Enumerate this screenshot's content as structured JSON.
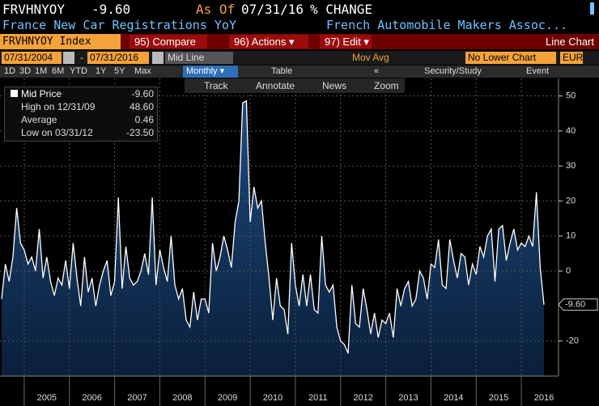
{
  "header": {
    "ticker": "FRVHNYOY",
    "price": "-9.60",
    "as_of": "As Of",
    "date": "07/31/16",
    "unit": "% CHANGE",
    "name": "France New Car Registrations YoY",
    "source": "French Automobile Makers Assoc..."
  },
  "toolbar": {
    "security": "FRVHNYOY Index",
    "compare": "95) Compare",
    "actions": "96) Actions ▾",
    "edit": "97) Edit ▾",
    "chart_type": "Line Chart",
    "start_date": "07/31/2004",
    "dash": "-",
    "end_date": "07/31/2016",
    "field": "Mid Line",
    "mov_avg": "Mov Avg",
    "lower": "No Lower Chart",
    "currency": "EUR",
    "ranges": [
      "1D",
      "3D",
      "1M",
      "6M",
      "YTD",
      "1Y",
      "5Y",
      "Max"
    ],
    "period": "Monthly ▾",
    "table": "Table",
    "back": "«",
    "study": "Security/Study",
    "event": "Event",
    "tools": [
      "Track",
      "Annotate",
      "News",
      "Zoom"
    ]
  },
  "legend": [
    {
      "label": "Mid Price",
      "value": "-9.60"
    },
    {
      "label": "High on 12/31/09",
      "value": "48.60"
    },
    {
      "label": "Average",
      "value": "0.46"
    },
    {
      "label": "Low on 03/31/12",
      "value": "-23.50"
    }
  ],
  "chart_data": {
    "type": "line",
    "xlim": [
      2004.5,
      2016.5
    ],
    "xticks": [
      2005,
      2006,
      2007,
      2008,
      2009,
      2010,
      2011,
      2012,
      2013,
      2014,
      2015,
      2016
    ],
    "ylim": [
      -30,
      55
    ],
    "yticks": [
      50,
      40,
      30,
      20,
      10,
      0,
      -20
    ],
    "grid": true,
    "last_value_label": "-9.60",
    "series": [
      {
        "name": "Mid Price",
        "color": "#ffffff",
        "fill": "#12325a",
        "values": [
          -8,
          2,
          -3,
          4,
          18,
          8,
          6,
          2,
          4,
          0,
          12,
          -2,
          4,
          -3,
          -7,
          -2,
          -4,
          3,
          -5,
          8,
          -2,
          -10,
          4,
          -6,
          -2,
          -10,
          -4,
          0,
          3,
          -7,
          -3,
          21,
          -5,
          7,
          -2,
          -4,
          -3,
          0,
          5,
          -1,
          21,
          -4,
          6,
          1,
          -3,
          10,
          -4,
          -8,
          -5,
          -14,
          -16,
          -6,
          -14,
          -8,
          -8,
          -12,
          8,
          0,
          4,
          10,
          6,
          1,
          14,
          20,
          48,
          48.6,
          14,
          24,
          18,
          20,
          8,
          -2,
          -14,
          -2,
          -10,
          -11,
          -18,
          8,
          -4,
          -10,
          -1,
          -10,
          -1,
          -11,
          -12,
          10,
          -4,
          -6,
          -4,
          -16,
          -20,
          -21,
          -23.5,
          -4,
          -15,
          -16,
          -5,
          -11,
          -18,
          -12,
          -19,
          -14,
          -15,
          -12,
          -19,
          -5,
          -10,
          -5,
          -3,
          -10,
          -8,
          0,
          -2,
          -8,
          2,
          1,
          9,
          -4,
          -5,
          9,
          3,
          -2,
          5,
          4,
          -4,
          2,
          -1,
          7,
          4,
          10,
          12,
          -3,
          12,
          13,
          3,
          8,
          12,
          6,
          8,
          7,
          10,
          7,
          22.5,
          1,
          -9.6
        ]
      }
    ]
  }
}
